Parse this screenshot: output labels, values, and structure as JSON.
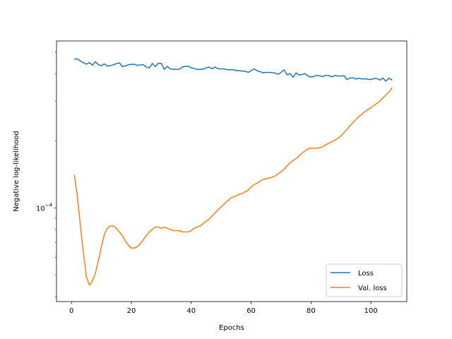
{
  "chart_data": {
    "type": "line",
    "title": "",
    "xlabel": "Epochs",
    "ylabel": "Negative log-likelihood",
    "yscale": "log",
    "xlim": [
      -5,
      112
    ],
    "ylim": [
      3.8e-05,
      0.00056
    ],
    "xticks": [
      0,
      20,
      40,
      60,
      80,
      100
    ],
    "xtick_labels": [
      "0",
      "20",
      "40",
      "60",
      "80",
      "100"
    ],
    "yticks": [
      0.0001
    ],
    "ytick_labels_base": "10",
    "ytick_labels_exp": "−4",
    "grid": false,
    "legend": {
      "position": "lower-right",
      "entries": [
        "Loss",
        "Val. loss"
      ]
    },
    "series": [
      {
        "name": "Loss",
        "color": "#1f77b4",
        "x": [
          1,
          2,
          3,
          4,
          5,
          6,
          7,
          8,
          9,
          10,
          11,
          12,
          13,
          14,
          15,
          16,
          17,
          18,
          19,
          20,
          21,
          22,
          23,
          24,
          25,
          26,
          27,
          28,
          29,
          30,
          31,
          32,
          33,
          34,
          35,
          36,
          37,
          38,
          39,
          40,
          41,
          42,
          43,
          44,
          45,
          46,
          47,
          48,
          49,
          50,
          51,
          52,
          53,
          54,
          55,
          56,
          57,
          58,
          59,
          60,
          61,
          62,
          63,
          64,
          65,
          66,
          67,
          68,
          69,
          70,
          71,
          72,
          73,
          74,
          75,
          76,
          77,
          78,
          79,
          80,
          81,
          82,
          83,
          84,
          85,
          86,
          87,
          88,
          89,
          90,
          91,
          92,
          93,
          94,
          95,
          96,
          97,
          98,
          99,
          100,
          101,
          102,
          103,
          104,
          105,
          106,
          107
        ],
        "values": [
          0.000465,
          0.000465,
          0.000455,
          0.000447,
          0.000441,
          0.000448,
          0.000436,
          0.000452,
          0.000438,
          0.000434,
          0.000442,
          0.000432,
          0.000434,
          0.000438,
          0.000443,
          0.000447,
          0.00043,
          0.000433,
          0.000438,
          0.00044,
          0.00044,
          0.000435,
          0.000438,
          0.000438,
          0.000428,
          0.000424,
          0.000444,
          0.00043,
          0.000445,
          0.000444,
          0.000418,
          0.000431,
          0.00042,
          0.000418,
          0.000418,
          0.000418,
          0.000428,
          0.000431,
          0.000432,
          0.000424,
          0.000422,
          0.000417,
          0.000418,
          0.000418,
          0.000424,
          0.000428,
          0.00042,
          0.000428,
          0.00042,
          0.00042,
          0.00042,
          0.000416,
          0.000416,
          0.000416,
          0.000412,
          0.000413,
          0.00041,
          0.00041,
          0.000405,
          0.000412,
          0.00042,
          0.000412,
          0.000408,
          0.000403,
          0.000405,
          0.000405,
          0.000404,
          0.000402,
          0.000397,
          0.000405,
          0.000416,
          0.000395,
          0.0004,
          0.000385,
          0.000403,
          0.000394,
          0.000396,
          0.0004,
          0.00039,
          0.000386,
          0.000388,
          0.000393,
          0.00039,
          0.000388,
          0.000393,
          0.000391,
          0.000387,
          0.000392,
          0.00039,
          0.00039,
          0.000391,
          0.000376,
          0.000382,
          0.000383,
          0.000378,
          0.000381,
          0.000378,
          0.000379,
          0.000377,
          0.000376,
          0.00038,
          0.00038,
          0.000374,
          0.000382,
          0.00037,
          0.000381,
          0.000375
        ]
      },
      {
        "name": "Val. loss",
        "color": "#ff7f0e",
        "x": [
          1,
          2,
          3,
          4,
          5,
          6,
          7,
          8,
          9,
          10,
          11,
          12,
          13,
          14,
          15,
          16,
          17,
          18,
          19,
          20,
          21,
          22,
          23,
          24,
          25,
          26,
          27,
          28,
          29,
          30,
          31,
          32,
          33,
          34,
          35,
          36,
          37,
          38,
          39,
          40,
          41,
          42,
          43,
          44,
          45,
          46,
          47,
          48,
          49,
          50,
          51,
          52,
          53,
          54,
          55,
          56,
          57,
          58,
          59,
          60,
          61,
          62,
          63,
          64,
          65,
          66,
          67,
          68,
          69,
          70,
          71,
          72,
          73,
          74,
          75,
          76,
          77,
          78,
          79,
          80,
          81,
          82,
          83,
          84,
          85,
          86,
          87,
          88,
          89,
          90,
          91,
          92,
          93,
          94,
          95,
          96,
          97,
          98,
          99,
          100,
          101,
          102,
          103,
          104,
          105,
          106,
          107
        ],
        "values": [
          0.00014,
          0.000112,
          8.3e-05,
          6.3e-05,
          4.9e-05,
          4.5e-05,
          4.7e-05,
          5.1e-05,
          5.8e-05,
          6.7e-05,
          7.6e-05,
          8.1e-05,
          8.3e-05,
          8.3e-05,
          8.1e-05,
          7.8e-05,
          7.5e-05,
          7.1e-05,
          6.8e-05,
          6.6e-05,
          6.6e-05,
          6.7e-05,
          6.9e-05,
          7.2e-05,
          7.5e-05,
          7.8e-05,
          8e-05,
          8.2e-05,
          8.2e-05,
          8.1e-05,
          8.2e-05,
          8.1e-05,
          8e-05,
          7.9e-05,
          7.9e-05,
          7.9e-05,
          7.8e-05,
          7.8e-05,
          7.8e-05,
          7.9e-05,
          8.1e-05,
          8.2e-05,
          8.3e-05,
          8.5e-05,
          8.7e-05,
          8.9e-05,
          9.2e-05,
          9.5e-05,
          9.8e-05,
          0.000101,
          0.000104,
          0.000107,
          0.00011,
          0.000112,
          0.000113,
          0.000115,
          0.000116,
          0.000118,
          0.00012,
          0.000124,
          0.000127,
          0.000129,
          0.000132,
          0.000134,
          0.000135,
          0.000136,
          0.000137,
          0.000139,
          0.000142,
          0.000145,
          0.000149,
          0.000154,
          0.000159,
          0.000163,
          0.000166,
          0.000171,
          0.000176,
          0.00018,
          0.000184,
          0.000185,
          0.000185,
          0.000185,
          0.000186,
          0.000188,
          0.000192,
          0.000195,
          0.000198,
          0.000201,
          0.000205,
          0.00021,
          0.000217,
          0.000225,
          0.000233,
          0.000241,
          0.000249,
          0.000256,
          0.000263,
          0.00027,
          0.000276,
          0.000281,
          0.000287,
          0.000294,
          0.000301,
          0.000311,
          0.00032,
          0.00033,
          0.000344
        ]
      }
    ]
  }
}
